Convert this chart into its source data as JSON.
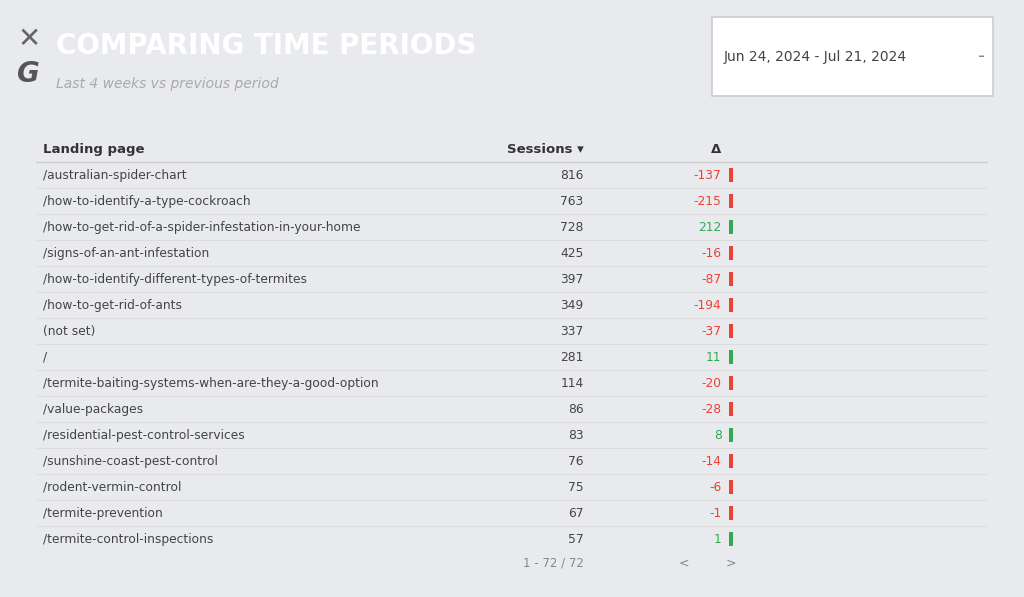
{
  "title": "COMPARING TIME PERIODS",
  "subtitle": "Last 4 weeks vs previous period",
  "date_range": "Jun 24, 2024 - Jul 21, 2024",
  "header_bg": "#000000",
  "table_bg": "#ffffff",
  "outer_bg": "#e8eaed",
  "col_header_bg": "#e8eaed",
  "col1_header": "Landing page",
  "col2_header": "Sessions ▾",
  "col3_header": "Δ",
  "rows": [
    [
      "/australian-spider-chart",
      "816",
      "-137"
    ],
    [
      "/how-to-identify-a-type-cockroach",
      "763",
      "-215"
    ],
    [
      "/how-to-get-rid-of-a-spider-infestation-in-your-home",
      "728",
      "212"
    ],
    [
      "/signs-of-an-ant-infestation",
      "425",
      "-16"
    ],
    [
      "/how-to-identify-different-types-of-termites",
      "397",
      "-87"
    ],
    [
      "/how-to-get-rid-of-ants",
      "349",
      "-194"
    ],
    [
      "(not set)",
      "337",
      "-37"
    ],
    [
      "/",
      "281",
      "11"
    ],
    [
      "/termite-baiting-systems-when-are-they-a-good-option",
      "114",
      "-20"
    ],
    [
      "/value-packages",
      "86",
      "-28"
    ],
    [
      "/residential-pest-control-services",
      "83",
      "8"
    ],
    [
      "/sunshine-coast-pest-control",
      "76",
      "-14"
    ],
    [
      "/rodent-vermin-control",
      "75",
      "-6"
    ],
    [
      "/termite-prevention",
      "67",
      "-1"
    ],
    [
      "/termite-control-inspections",
      "57",
      "1"
    ]
  ],
  "pagination": "1 - 72 / 72",
  "positive_color": "#34a853",
  "negative_color": "#ea4335",
  "text_color": "#444444",
  "header_text_color": "#ffffff",
  "divider_color": "#dddddd",
  "col_header_text_color": "#333333",
  "logo_x_color": "#666666",
  "logo_g_color": "#555555",
  "date_box_border": "#cccccc",
  "date_text_color": "#444444",
  "sep_color": "#bbbbbb"
}
